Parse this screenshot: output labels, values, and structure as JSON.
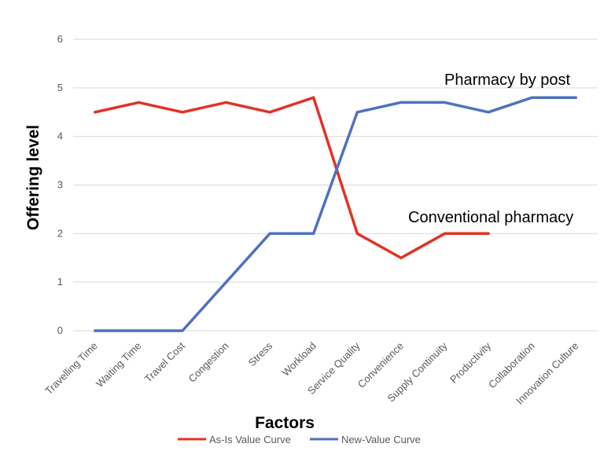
{
  "chart_data": {
    "type": "line",
    "categories": [
      "Travelling Time",
      "Waiting Time",
      "Travel Cost",
      "Congestion",
      "Stress",
      "Workload",
      "Service Quality",
      "Convenience",
      "Supply Continuity",
      "Productivity",
      "Collaboration",
      "Innovation Culture"
    ],
    "series": [
      {
        "name": "As-Is Value Curve",
        "color": "#e03326",
        "values": [
          4.5,
          4.7,
          4.5,
          4.7,
          4.5,
          4.8,
          2.0,
          1.5,
          2.0,
          2.0,
          null,
          null
        ]
      },
      {
        "name": "New-Value Curve",
        "color": "#4f72be",
        "values": [
          0,
          0,
          0,
          1.0,
          2.0,
          2.0,
          4.5,
          4.7,
          4.7,
          4.5,
          4.8,
          4.8
        ]
      }
    ],
    "xlabel": "Factors",
    "ylabel": "Offering level",
    "ylim": [
      0,
      6
    ],
    "yticks": [
      0,
      1,
      2,
      3,
      4,
      5,
      6
    ],
    "grid": true,
    "legend_position": "bottom",
    "annotations": [
      "Pharmacy by post",
      "Conventional pharmacy"
    ]
  }
}
